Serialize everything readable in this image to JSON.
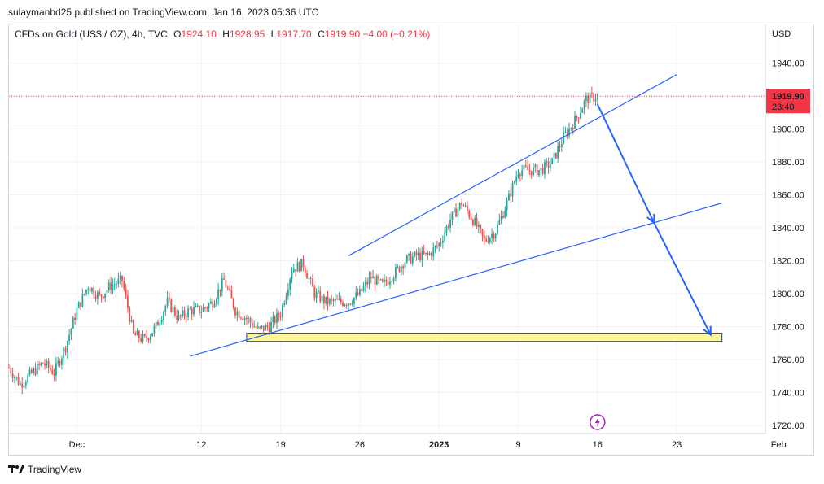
{
  "publisher": "sulaymanbd25 published on TradingView.com, Jan 16, 2023 05:36 UTC",
  "legend": {
    "symbol": "CFDs on Gold (US$ / OZ), 4h, TVC",
    "open_label": "O",
    "open": "1924.10",
    "high_label": "H",
    "high": "1928.95",
    "low_label": "L",
    "low": "1917.70",
    "close_label": "C",
    "close": "1919.90",
    "change": "−4.00 (−0.21%)"
  },
  "price_axis": {
    "currency": "USD",
    "last_price": "1919.90",
    "countdown": "23:40"
  },
  "footer": {
    "brand": "TradingView"
  },
  "colors": {
    "up": "#26a69a",
    "down": "#ef5350",
    "trendline": "#2962ff",
    "zone_fill": "#fff59d",
    "price_tag": "#f23645"
  },
  "chart_data": {
    "type": "candlestick",
    "symbol": "CFDs on Gold (US$ / OZ)",
    "interval": "4h",
    "ylim": [
      1713,
      1958
    ],
    "y_ticks": [
      1720,
      1740,
      1760,
      1780,
      1800,
      1820,
      1840,
      1860,
      1880,
      1900,
      1920,
      1940
    ],
    "x_ticks": [
      "Dec",
      "12",
      "19",
      "26",
      "2023",
      "9",
      "16",
      "23",
      "Feb"
    ],
    "x_start": "2022-11-25",
    "x_tick_dates": [
      "2022-12-01",
      "2022-12-12",
      "2022-12-19",
      "2022-12-26",
      "2023-01-02",
      "2023-01-09",
      "2023-01-16",
      "2023-01-23",
      "2023-02-01"
    ],
    "last_close": 1919.9,
    "close_path": [
      [
        "2022-11-25",
        1755
      ],
      [
        "2022-11-26",
        1745
      ],
      [
        "2022-11-28",
        1758
      ],
      [
        "2022-11-29",
        1752
      ],
      [
        "2022-11-30",
        1768
      ],
      [
        "2022-12-01",
        1790
      ],
      [
        "2022-12-02",
        1805
      ],
      [
        "2022-12-03",
        1798
      ],
      [
        "2022-12-04",
        1805
      ],
      [
        "2022-12-05",
        1808
      ],
      [
        "2022-12-06",
        1775
      ],
      [
        "2022-12-07",
        1772
      ],
      [
        "2022-12-08",
        1780
      ],
      [
        "2022-12-09",
        1795
      ],
      [
        "2022-12-10",
        1785
      ],
      [
        "2022-12-11",
        1790
      ],
      [
        "2022-12-12",
        1790
      ],
      [
        "2022-12-13",
        1795
      ],
      [
        "2022-12-14",
        1808
      ],
      [
        "2022-12-15",
        1790
      ],
      [
        "2022-12-16",
        1785
      ],
      [
        "2022-12-17",
        1778
      ],
      [
        "2022-12-18",
        1780
      ],
      [
        "2022-12-19",
        1788
      ],
      [
        "2022-12-20",
        1815
      ],
      [
        "2022-12-21",
        1818
      ],
      [
        "2022-12-22",
        1800
      ],
      [
        "2022-12-23",
        1795
      ],
      [
        "2022-12-24",
        1795
      ],
      [
        "2022-12-25",
        1795
      ],
      [
        "2022-12-26",
        1800
      ],
      [
        "2022-12-27",
        1810
      ],
      [
        "2022-12-28",
        1805
      ],
      [
        "2022-12-29",
        1812
      ],
      [
        "2022-12-30",
        1820
      ],
      [
        "2022-12-31",
        1823
      ],
      [
        "2023-01-01",
        1823
      ],
      [
        "2023-01-02",
        1830
      ],
      [
        "2023-01-03",
        1845
      ],
      [
        "2023-01-04",
        1855
      ],
      [
        "2023-01-05",
        1845
      ],
      [
        "2023-01-06",
        1832
      ],
      [
        "2023-01-07",
        1838
      ],
      [
        "2023-01-08",
        1855
      ],
      [
        "2023-01-09",
        1875
      ],
      [
        "2023-01-10",
        1875
      ],
      [
        "2023-01-11",
        1875
      ],
      [
        "2023-01-12",
        1880
      ],
      [
        "2023-01-13",
        1895
      ],
      [
        "2023-01-14",
        1905
      ],
      [
        "2023-01-15",
        1918
      ],
      [
        "2023-01-16",
        1920
      ]
    ],
    "annotations": {
      "upper_trendline": [
        [
          "2022-12-25",
          1823
        ],
        [
          "2023-01-23",
          1933
        ]
      ],
      "lower_trendline": [
        [
          "2022-12-11",
          1762
        ],
        [
          "2023-01-27",
          1855
        ]
      ],
      "support_zone": {
        "from": "2022-12-16",
        "to": "2023-01-27",
        "low": 1771,
        "high": 1776
      },
      "projection_arrow": [
        [
          "2023-01-16",
          1915
        ],
        [
          "2023-01-21",
          1843
        ],
        [
          "2023-01-26",
          1775
        ]
      ]
    }
  }
}
